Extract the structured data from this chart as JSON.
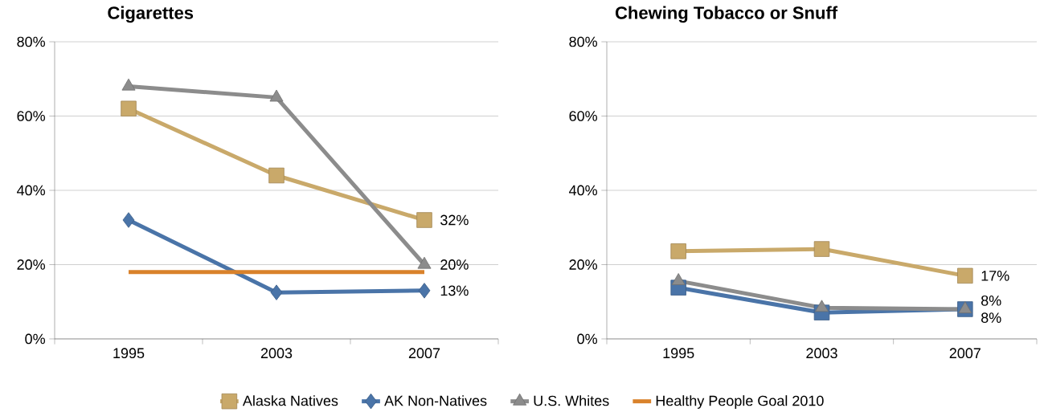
{
  "chart_data": [
    {
      "type": "line",
      "title": "Cigarettes",
      "categories": [
        "1995",
        "2003",
        "2007"
      ],
      "ylim": [
        0,
        80
      ],
      "yticks": [
        {
          "value": 0,
          "label": "0%"
        },
        {
          "value": 20,
          "label": "20%"
        },
        {
          "value": 40,
          "label": "40%"
        },
        {
          "value": 60,
          "label": "60%"
        },
        {
          "value": 80,
          "label": "80%"
        }
      ],
      "grid": "y",
      "legend": "bottom",
      "series": [
        {
          "name": "Alaska Natives",
          "color": "#c9a96a",
          "marker": "square",
          "values": [
            62,
            44,
            32
          ],
          "value_labels": [
            null,
            null,
            "32%"
          ]
        },
        {
          "name": "AK Non-Natives",
          "color": "#4a74a8",
          "marker": "diamond",
          "values": [
            32,
            12.5,
            13
          ],
          "value_labels": [
            null,
            null,
            "13%"
          ]
        },
        {
          "name": "U.S. Whites",
          "color": "#8c8c8c",
          "marker": "triangle",
          "values": [
            68,
            65,
            20
          ],
          "value_labels": [
            null,
            null,
            "20%"
          ]
        },
        {
          "name": "Healthy People Goal 2010",
          "color": "#d9822b",
          "marker": "none",
          "values": [
            18,
            18,
            18
          ]
        }
      ]
    },
    {
      "type": "line",
      "title": "Chewing Tobacco or Snuff",
      "categories": [
        "1995",
        "2003",
        "2007"
      ],
      "ylim": [
        0,
        80
      ],
      "yticks": [
        {
          "value": 0,
          "label": "0%"
        },
        {
          "value": 20,
          "label": "20%"
        },
        {
          "value": 40,
          "label": "40%"
        },
        {
          "value": 60,
          "label": "60%"
        },
        {
          "value": 80,
          "label": "80%"
        }
      ],
      "grid": "y",
      "series": [
        {
          "color": "#c9a96a",
          "marker": "square",
          "values": [
            23.6,
            24.2,
            17
          ],
          "value_labels": [
            null,
            null,
            "17%"
          ]
        },
        {
          "color": "#4a74a8",
          "marker": "square",
          "values": [
            13.8,
            7.1,
            8
          ],
          "value_labels": [
            null,
            null,
            "8%"
          ]
        },
        {
          "color": "#8c8c8c",
          "marker": "triangle",
          "values": [
            15.6,
            8.4,
            8
          ],
          "value_labels": [
            null,
            null,
            "8%"
          ]
        }
      ]
    }
  ]
}
